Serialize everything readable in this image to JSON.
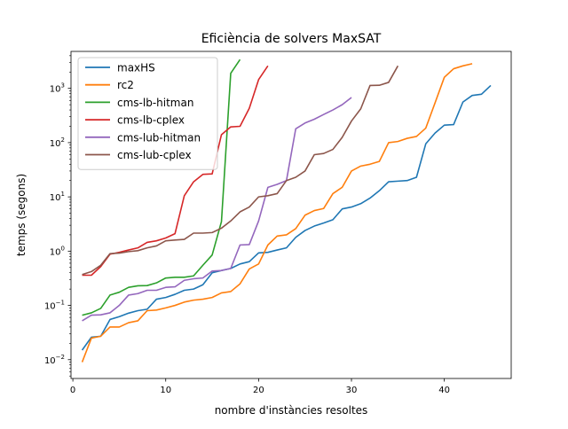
{
  "chart_data": {
    "type": "line",
    "title": "Eficiència de solvers MaxSAT",
    "xlabel": "nombre d'instàncies resoltes",
    "ylabel": "temps (segons)",
    "yscale": "log",
    "xlim": [
      -0.2,
      47.2
    ],
    "ylim": [
      0.0045,
      4800
    ],
    "xticks": [
      0,
      10,
      20,
      30,
      40
    ],
    "yticks": [
      0.01,
      0.1,
      1,
      10,
      100,
      1000
    ],
    "ytick_labels": [
      [
        "10",
        "−2"
      ],
      [
        "10",
        "−1"
      ],
      [
        "10",
        "0"
      ],
      [
        "10",
        "1"
      ],
      [
        "10",
        "2"
      ],
      [
        "10",
        "3"
      ]
    ],
    "grid": false,
    "legend_position": "top-left",
    "series": [
      {
        "name": "maxHS",
        "color": "#1f77b4",
        "x": [
          1,
          2,
          3,
          4,
          5,
          6,
          7,
          8,
          9,
          10,
          11,
          12,
          13,
          14,
          15,
          16,
          17,
          18,
          19,
          20,
          21,
          22,
          23,
          24,
          25,
          26,
          27,
          28,
          29,
          30,
          31,
          32,
          33,
          34,
          35,
          36,
          37,
          38,
          39,
          40,
          41,
          42,
          43,
          44,
          45
        ],
        "values": [
          0.015,
          0.026,
          0.027,
          0.055,
          0.062,
          0.072,
          0.08,
          0.085,
          0.13,
          0.14,
          0.16,
          0.19,
          0.2,
          0.24,
          0.4,
          0.44,
          0.48,
          0.58,
          0.64,
          0.93,
          0.95,
          1.05,
          1.15,
          1.8,
          2.4,
          2.9,
          3.3,
          3.8,
          6.0,
          6.5,
          7.5,
          9.5,
          13,
          19,
          19.5,
          20,
          23,
          95,
          150,
          210,
          215,
          560,
          740,
          780,
          1130
        ]
      },
      {
        "name": "rc2",
        "color": "#ff7f0e",
        "x": [
          1,
          2,
          3,
          4,
          5,
          6,
          7,
          8,
          9,
          10,
          11,
          12,
          13,
          14,
          15,
          16,
          17,
          18,
          19,
          20,
          21,
          22,
          23,
          24,
          25,
          26,
          27,
          28,
          29,
          30,
          31,
          32,
          33,
          34,
          35,
          36,
          37,
          38,
          39,
          40,
          41,
          42,
          43
        ],
        "values": [
          0.009,
          0.025,
          0.027,
          0.04,
          0.04,
          0.048,
          0.052,
          0.08,
          0.082,
          0.09,
          0.1,
          0.115,
          0.125,
          0.13,
          0.14,
          0.17,
          0.18,
          0.25,
          0.47,
          0.58,
          1.3,
          1.9,
          2.0,
          2.6,
          4.6,
          5.6,
          6.1,
          11.5,
          15,
          30,
          37,
          40,
          45,
          100,
          105,
          120,
          130,
          185,
          540,
          1600,
          2300,
          2600,
          2850
        ]
      },
      {
        "name": "cms-lb-hitman",
        "color": "#2ca02c",
        "x": [
          1,
          2,
          3,
          4,
          5,
          6,
          7,
          8,
          9,
          10,
          11,
          12,
          13,
          14,
          15,
          16,
          17,
          18
        ],
        "values": [
          0.066,
          0.073,
          0.088,
          0.155,
          0.175,
          0.215,
          0.23,
          0.232,
          0.26,
          0.32,
          0.33,
          0.33,
          0.35,
          0.55,
          0.85,
          3.5,
          1900,
          3400
        ]
      },
      {
        "name": "cms-lb-cplex",
        "color": "#d62728",
        "x": [
          1,
          2,
          3,
          4,
          5,
          6,
          7,
          8,
          9,
          10,
          11,
          12,
          13,
          14,
          15,
          16,
          17,
          18,
          19,
          20,
          21
        ],
        "values": [
          0.36,
          0.36,
          0.52,
          0.88,
          0.95,
          1.05,
          1.15,
          1.45,
          1.55,
          1.75,
          2.1,
          10.5,
          19,
          26,
          26.5,
          140,
          195,
          200,
          430,
          1450,
          2600
        ]
      },
      {
        "name": "cms-lub-hitman",
        "color": "#9467bd",
        "x": [
          1,
          2,
          3,
          4,
          5,
          6,
          7,
          8,
          9,
          10,
          11,
          12,
          13,
          14,
          15,
          16,
          17,
          18,
          19,
          20,
          21,
          22,
          23,
          24,
          25,
          26,
          27,
          28,
          29,
          30
        ],
        "values": [
          0.052,
          0.066,
          0.067,
          0.073,
          0.1,
          0.155,
          0.165,
          0.19,
          0.19,
          0.215,
          0.22,
          0.29,
          0.31,
          0.32,
          0.43,
          0.44,
          0.48,
          1.3,
          1.32,
          3.6,
          15,
          17,
          20,
          180,
          230,
          270,
          330,
          400,
          500,
          680
        ]
      },
      {
        "name": "cms-lub-cplex",
        "color": "#8c564b",
        "x": [
          1,
          2,
          3,
          4,
          5,
          6,
          7,
          8,
          9,
          10,
          11,
          12,
          13,
          14,
          15,
          16,
          17,
          18,
          19,
          20,
          21,
          22,
          23,
          24,
          25,
          26,
          27,
          28,
          29,
          30,
          31,
          32,
          33,
          34,
          35
        ],
        "values": [
          0.37,
          0.42,
          0.55,
          0.9,
          0.92,
          0.98,
          1.02,
          1.15,
          1.25,
          1.55,
          1.6,
          1.65,
          2.15,
          2.15,
          2.2,
          2.65,
          3.6,
          5.3,
          6.5,
          10,
          10.5,
          11.5,
          20,
          23,
          30,
          60,
          63,
          75,
          125,
          250,
          420,
          1130,
          1140,
          1290,
          2600
        ]
      }
    ]
  }
}
